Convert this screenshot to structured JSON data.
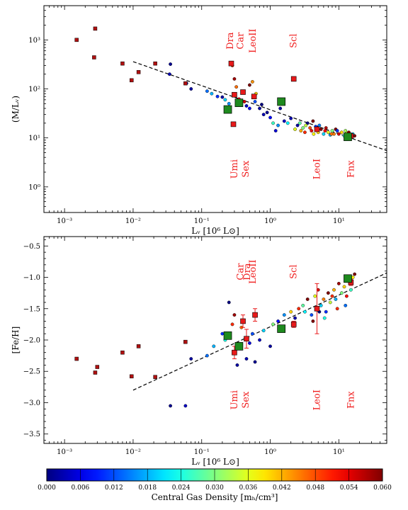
{
  "chart_data": [
    {
      "type": "scatter",
      "xlabel": "Lᵥ [10⁶ L⊙]",
      "ylabel": "(M/Lᵥ)",
      "xscale": "log",
      "yscale": "log",
      "xlim": [
        0.0005,
        50
      ],
      "ylim": [
        0.3,
        5000
      ],
      "xticks": [
        {
          "value": 0.001,
          "label": "10⁻³"
        },
        {
          "value": 0.01,
          "label": "10⁻²"
        },
        {
          "value": 0.1,
          "label": "10⁻¹"
        },
        {
          "value": 1,
          "label": "10⁰"
        },
        {
          "value": 10,
          "label": "10¹"
        }
      ],
      "yticks": [
        {
          "value": 1,
          "label": "10⁰"
        },
        {
          "value": 10,
          "label": "10¹"
        },
        {
          "value": 100,
          "label": "10²"
        },
        {
          "value": 1000,
          "label": "10³"
        }
      ],
      "fit_line": [
        [
          0.01,
          360
        ],
        [
          50,
          5.5
        ]
      ],
      "small_red_squares": [
        [
          0.0015,
          1000
        ],
        [
          0.0028,
          1700
        ],
        [
          0.0027,
          440
        ],
        [
          0.007,
          330
        ],
        [
          0.0095,
          150
        ],
        [
          0.012,
          220
        ],
        [
          0.021,
          330
        ],
        [
          0.058,
          130
        ]
      ],
      "large_red_squares": [
        [
          0.27,
          330
        ],
        [
          0.3,
          76
        ],
        [
          0.4,
          86
        ],
        [
          0.58,
          70
        ],
        [
          0.29,
          19
        ],
        [
          2.2,
          160
        ],
        [
          4.8,
          15
        ],
        [
          15,
          11
        ]
      ],
      "large_green_squares": [
        [
          0.24,
          38
        ],
        [
          0.35,
          52
        ],
        [
          1.45,
          55
        ],
        [
          13.5,
          10.5
        ]
      ],
      "gas_density_points": [
        [
          0.035,
          320,
          0.001
        ],
        [
          0.034,
          200,
          0.003
        ],
        [
          0.07,
          100,
          0.002
        ],
        [
          0.06,
          130,
          0.006
        ],
        [
          0.12,
          90,
          0.014
        ],
        [
          0.14,
          80,
          0.018
        ],
        [
          0.17,
          70,
          0.01
        ],
        [
          0.2,
          68,
          0.002
        ],
        [
          0.22,
          60,
          0.02
        ],
        [
          0.25,
          50,
          0.016
        ],
        [
          0.28,
          300,
          0.05
        ],
        [
          0.3,
          160,
          0.058
        ],
        [
          0.32,
          110,
          0.046
        ],
        [
          0.35,
          62,
          0.052
        ],
        [
          0.42,
          55,
          0.055
        ],
        [
          0.45,
          45,
          0.004
        ],
        [
          0.5,
          40,
          0.007
        ],
        [
          0.55,
          140,
          0.044
        ],
        [
          0.6,
          55,
          0.012
        ],
        [
          0.7,
          40,
          0.002
        ],
        [
          0.8,
          30,
          0.003
        ],
        [
          0.9,
          33,
          0.001
        ],
        [
          1.0,
          26,
          0.008
        ],
        [
          1.1,
          20,
          0.026
        ],
        [
          1.2,
          14,
          0.005
        ],
        [
          1.3,
          18,
          0.016
        ],
        [
          1.6,
          22,
          0.004
        ],
        [
          1.8,
          20,
          0.022
        ],
        [
          2.0,
          25,
          0.003
        ],
        [
          2.3,
          15,
          0.036
        ],
        [
          2.5,
          18,
          0.002
        ],
        [
          2.8,
          14,
          0.042
        ],
        [
          3.0,
          16,
          0.03
        ],
        [
          3.2,
          13,
          0.05
        ],
        [
          3.5,
          20,
          0.0
        ],
        [
          3.8,
          16,
          0.048
        ],
        [
          4.0,
          14,
          0.054
        ],
        [
          4.3,
          12,
          0.038
        ],
        [
          4.6,
          17,
          0.01
        ],
        [
          5.0,
          13,
          0.04
        ],
        [
          5.5,
          15,
          0.06
        ],
        [
          6.0,
          12,
          0.02
        ],
        [
          6.5,
          16,
          0.057
        ],
        [
          7.0,
          13,
          0.036
        ],
        [
          7.5,
          11.5,
          0.018
        ],
        [
          8.0,
          14,
          0.03
        ],
        [
          8.5,
          12,
          0.045
        ],
        [
          9.0,
          15,
          0.06
        ],
        [
          10,
          12,
          0.055
        ],
        [
          11,
          13,
          0.04
        ],
        [
          12,
          11,
          0.025
        ],
        [
          13,
          12.5,
          0.035
        ],
        [
          14,
          13,
          0.06
        ],
        [
          15,
          11.5,
          0.05
        ],
        [
          16,
          12,
          0.02
        ],
        [
          17,
          11,
          0.06
        ],
        [
          4.2,
          22,
          0.06
        ],
        [
          5.2,
          18,
          0.015
        ],
        [
          9.5,
          14,
          0.01
        ],
        [
          12.5,
          14,
          0.032
        ],
        [
          1.4,
          40,
          0.002
        ],
        [
          0.75,
          48,
          0.0
        ],
        [
          0.62,
          80,
          0.04
        ],
        [
          0.5,
          120,
          0.06
        ],
        [
          2.7,
          20,
          0.028
        ],
        [
          3.3,
          18,
          0.034
        ],
        [
          6.3,
          14,
          0.052
        ],
        [
          7.8,
          12,
          0.046
        ]
      ],
      "galaxy_labels": [
        {
          "name": "Dra",
          "x": 0.26,
          "pos": "top"
        },
        {
          "name": "Car",
          "x": 0.37,
          "pos": "top"
        },
        {
          "name": "LeoII",
          "x": 0.56,
          "pos": "top"
        },
        {
          "name": "Scl",
          "x": 2.2,
          "pos": "top"
        },
        {
          "name": "Umi",
          "x": 0.3,
          "pos": "bottom"
        },
        {
          "name": "Sex",
          "x": 0.44,
          "pos": "bottom"
        },
        {
          "name": "LeoI",
          "x": 4.8,
          "pos": "bottom"
        },
        {
          "name": "Fnx",
          "x": 15,
          "pos": "bottom"
        }
      ]
    },
    {
      "type": "scatter",
      "xlabel": "Lᵥ [10⁶ L⊙]",
      "ylabel": "[Fe/H]",
      "xscale": "log",
      "xlim": [
        0.0005,
        50
      ],
      "ylim": [
        -3.65,
        -0.35
      ],
      "xticks": [
        {
          "value": 0.001,
          "label": "10⁻³"
        },
        {
          "value": 0.01,
          "label": "10⁻²"
        },
        {
          "value": 0.1,
          "label": "10⁻¹"
        },
        {
          "value": 1,
          "label": "10⁰"
        },
        {
          "value": 10,
          "label": "10¹"
        }
      ],
      "yticks": [
        {
          "value": -3.5,
          "label": "−3.5"
        },
        {
          "value": -3.0,
          "label": "−3.0"
        },
        {
          "value": -2.5,
          "label": "−2.5"
        },
        {
          "value": -2.0,
          "label": "−2.0"
        },
        {
          "value": -1.5,
          "label": "−1.5"
        },
        {
          "value": -1.0,
          "label": "−1.0"
        },
        {
          "value": -0.5,
          "label": "−0.5"
        }
      ],
      "fit_line": [
        [
          0.01,
          -2.8
        ],
        [
          50,
          -0.93
        ]
      ],
      "small_red_squares": [
        [
          0.0015,
          -2.3
        ],
        [
          0.0028,
          -2.52
        ],
        [
          0.003,
          -2.43
        ],
        [
          0.007,
          -2.2
        ],
        [
          0.0095,
          -2.58
        ],
        [
          0.012,
          -2.1
        ],
        [
          0.021,
          -2.59
        ],
        [
          0.058,
          -2.03
        ]
      ],
      "large_red_squares": [
        {
          "x": 0.3,
          "y": -2.2,
          "err": 0.1
        },
        {
          "x": 0.4,
          "y": -1.7,
          "err": 0.1
        },
        {
          "x": 0.45,
          "y": -1.98,
          "err": 0.15
        },
        {
          "x": 0.6,
          "y": -1.6,
          "err": 0.1
        },
        {
          "x": 2.2,
          "y": -1.75,
          "err": 0.05
        },
        {
          "x": 4.8,
          "y": -1.5,
          "err": 0.4
        },
        {
          "x": 15,
          "y": -1.08,
          "err": 0.05
        }
      ],
      "large_green_squares": [
        [
          0.24,
          -1.93
        ],
        [
          0.35,
          -2.1
        ],
        [
          1.45,
          -1.82
        ],
        [
          13.5,
          -1.02
        ]
      ],
      "gas_density_points": [
        [
          0.035,
          -3.05,
          0.001
        ],
        [
          0.058,
          -3.05,
          0.004
        ],
        [
          0.07,
          -2.3,
          0.002
        ],
        [
          0.12,
          -2.25,
          0.014
        ],
        [
          0.15,
          -2.1,
          0.018
        ],
        [
          0.2,
          -1.9,
          0.01
        ],
        [
          0.22,
          -2.0,
          0.024
        ],
        [
          0.25,
          -1.4,
          0.0
        ],
        [
          0.28,
          -1.75,
          0.05
        ],
        [
          0.3,
          -1.6,
          0.058
        ],
        [
          0.33,
          -2.4,
          0.002
        ],
        [
          0.38,
          -1.8,
          0.046
        ],
        [
          0.45,
          -2.3,
          0.003
        ],
        [
          0.5,
          -2.05,
          0.006
        ],
        [
          0.55,
          -1.9,
          0.012
        ],
        [
          0.6,
          -2.35,
          0.001
        ],
        [
          0.7,
          -2.0,
          0.004
        ],
        [
          0.8,
          -1.85,
          0.02
        ],
        [
          1.0,
          -2.1,
          0.002
        ],
        [
          1.1,
          -1.75,
          0.03
        ],
        [
          1.3,
          -1.7,
          0.008
        ],
        [
          1.6,
          -1.6,
          0.016
        ],
        [
          2.0,
          -1.55,
          0.04
        ],
        [
          2.3,
          -1.65,
          0.003
        ],
        [
          2.6,
          -1.5,
          0.05
        ],
        [
          3.0,
          -1.45,
          0.028
        ],
        [
          3.5,
          -1.35,
          0.06
        ],
        [
          4.0,
          -1.6,
          0.012
        ],
        [
          4.5,
          -1.3,
          0.036
        ],
        [
          5.0,
          -1.2,
          0.055
        ],
        [
          5.5,
          -1.45,
          0.02
        ],
        [
          6.0,
          -1.35,
          0.045
        ],
        [
          6.5,
          -1.55,
          0.01
        ],
        [
          7.0,
          -1.25,
          0.06
        ],
        [
          7.5,
          -1.4,
          0.034
        ],
        [
          8.0,
          -1.3,
          0.05
        ],
        [
          8.5,
          -1.2,
          0.042
        ],
        [
          9.0,
          -1.35,
          0.018
        ],
        [
          10,
          -1.1,
          0.058
        ],
        [
          11,
          -1.25,
          0.03
        ],
        [
          12,
          -1.15,
          0.04
        ],
        [
          13,
          -1.3,
          0.052
        ],
        [
          14,
          -1.05,
          0.06
        ],
        [
          15,
          -1.2,
          0.026
        ],
        [
          16,
          -1.0,
          0.038
        ],
        [
          17,
          -0.95,
          0.06
        ],
        [
          5.2,
          -1.55,
          0.0
        ],
        [
          6.2,
          -1.65,
          0.024
        ],
        [
          9.5,
          -1.5,
          0.05
        ],
        [
          12.5,
          -1.45,
          0.014
        ],
        [
          4.2,
          -1.7,
          0.06
        ],
        [
          3.2,
          -1.55,
          0.022
        ]
      ],
      "galaxy_labels": [
        {
          "name": "Car",
          "x": 0.37,
          "pos": "top"
        },
        {
          "name": "Dra",
          "x": 0.46,
          "pos": "top"
        },
        {
          "name": "LeoII",
          "x": 0.56,
          "pos": "top"
        },
        {
          "name": "Scl",
          "x": 2.2,
          "pos": "top"
        },
        {
          "name": "Umi",
          "x": 0.3,
          "pos": "bottom"
        },
        {
          "name": "Sex",
          "x": 0.44,
          "pos": "bottom"
        },
        {
          "name": "LeoI",
          "x": 4.8,
          "pos": "bottom"
        },
        {
          "name": "Fnx",
          "x": 15,
          "pos": "bottom"
        }
      ]
    }
  ],
  "colorbar": {
    "label": "Central Gas Density [mₕ/cm³]",
    "range": [
      0.0,
      0.06
    ],
    "ticks": [
      "0.000",
      "0.006",
      "0.012",
      "0.018",
      "0.024",
      "0.030",
      "0.036",
      "0.042",
      "0.048",
      "0.054",
      "0.060"
    ]
  },
  "colors": {
    "red": "#e8191a",
    "red_dark": "#b01010",
    "green": "#1e8a1e",
    "label_red": "#f02020"
  }
}
